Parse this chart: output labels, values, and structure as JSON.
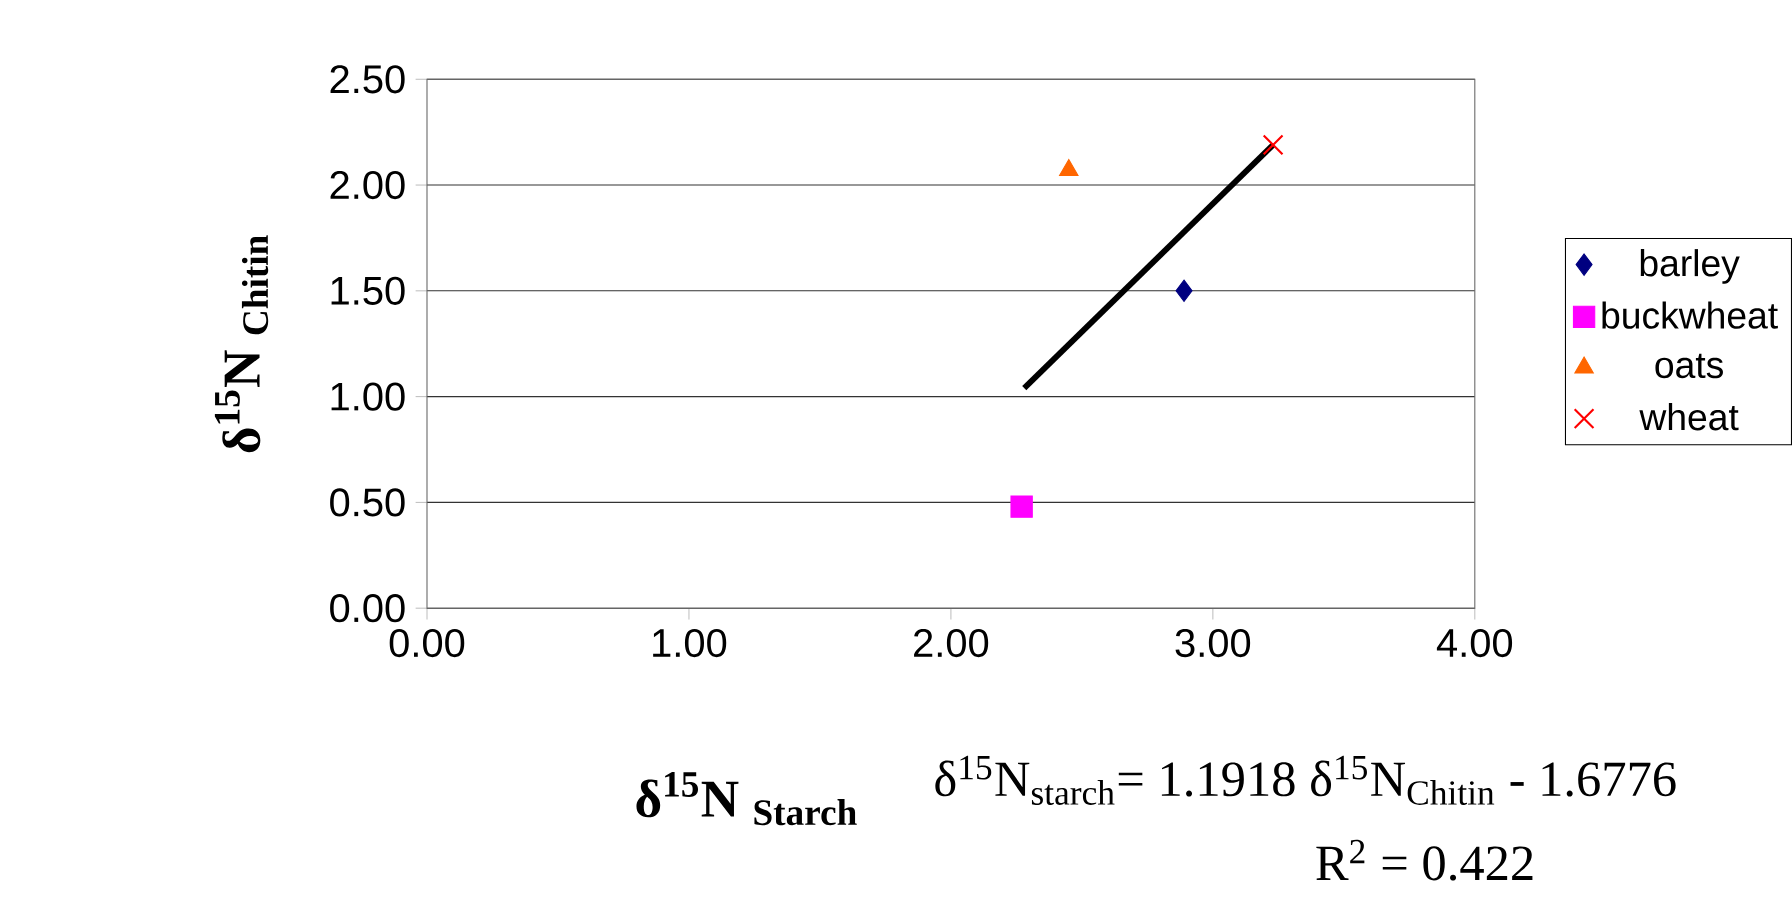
{
  "chart_data": {
    "type": "scatter",
    "xlabel": "δ$^{15}$N $_{Starch}$",
    "ylabel": "δ$^{15}$N $_{Chitin}$",
    "annotations": [
      "δ$^{15}$N$_{starch}$= 1.1918 δ$^{15}$N$_{Chitin}$ - 1.6776",
      "R$^{2}$ = 0.422"
    ],
    "series": [
      {
        "name": "barley",
        "color": "#000080",
        "marker": "diamond",
        "x": [
          2.89
        ],
        "values": [
          1.5
        ]
      },
      {
        "name": "buckwheat",
        "color": "#ff00ff",
        "marker": "square",
        "x": [
          2.27
        ],
        "values": [
          0.48
        ]
      },
      {
        "name": "oats",
        "color": "#ff6600",
        "marker": "triangle",
        "x": [
          2.45
        ],
        "values": [
          2.07
        ]
      },
      {
        "name": "wheat",
        "color": "#ff0000",
        "marker": "cross",
        "x": [
          3.23
        ],
        "values": [
          2.19
        ]
      },
      {
        "type": "line",
        "color": "#000000",
        "marker": "none",
        "x": [
          2.28,
          3.23
        ],
        "values": [
          1.04,
          2.19
        ]
      }
    ],
    "xlim": [
      0,
      4
    ],
    "ylim": [
      0,
      2.5
    ],
    "xticks": [
      {
        "value": 0,
        "label": "0.00"
      },
      {
        "value": 1,
        "label": "1.00"
      },
      {
        "value": 2,
        "label": "2.00"
      },
      {
        "value": 3,
        "label": "3.00"
      },
      {
        "value": 4,
        "label": "4.00"
      }
    ],
    "yticks": [
      {
        "value": 0,
        "label": "0.00"
      },
      {
        "value": 0.5,
        "label": "0.50"
      },
      {
        "value": 1,
        "label": "1.00"
      },
      {
        "value": 1.5,
        "label": "1.50"
      },
      {
        "value": 2,
        "label": "2.00"
      },
      {
        "value": 2.5,
        "label": "2.50"
      }
    ],
    "grid": "y",
    "legend": "right"
  }
}
